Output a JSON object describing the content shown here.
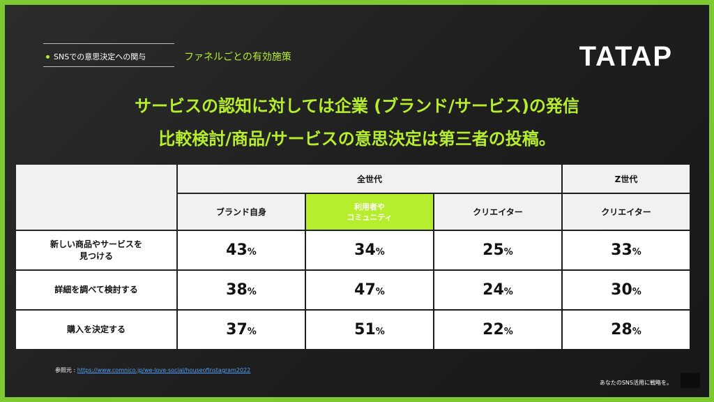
{
  "header": {
    "topic": "SNSでの意思決定への関与",
    "subtitle": "ファネルごとの有効施策",
    "logo": "TATAP"
  },
  "headline": {
    "line1": "サービスの認知に対しては企業 (ブランド/サービス)の発信",
    "line2": "比較検討/商品/サービスの意思決定は第三者の投稿。"
  },
  "table": {
    "groups": [
      "全世代",
      "Z世代"
    ],
    "columns": [
      "ブランド自身",
      "利用者や\nコミュニティ",
      "クリエイター",
      "クリエイター"
    ],
    "rows": [
      {
        "label": "新しい商品やサービスを\n見つける",
        "values": [
          "43",
          "34",
          "25",
          "33"
        ]
      },
      {
        "label": "詳細を調べて検討する",
        "values": [
          "38",
          "47",
          "24",
          "30"
        ]
      },
      {
        "label": "購入を決定する",
        "values": [
          "37",
          "51",
          "22",
          "28"
        ]
      }
    ],
    "unit": "%"
  },
  "footer": {
    "reference_label": "参照元 : ",
    "reference_url": "https://www.comnico.jp/we-love-social/houseofinstagram2022",
    "tagline": "あなたのSNS活用に戦略を。"
  },
  "colors": {
    "accent": "#b6ee2e",
    "highlight_cell": "#c7e2bc",
    "highlight_text": "#e2231a",
    "border": "#7ec832"
  }
}
